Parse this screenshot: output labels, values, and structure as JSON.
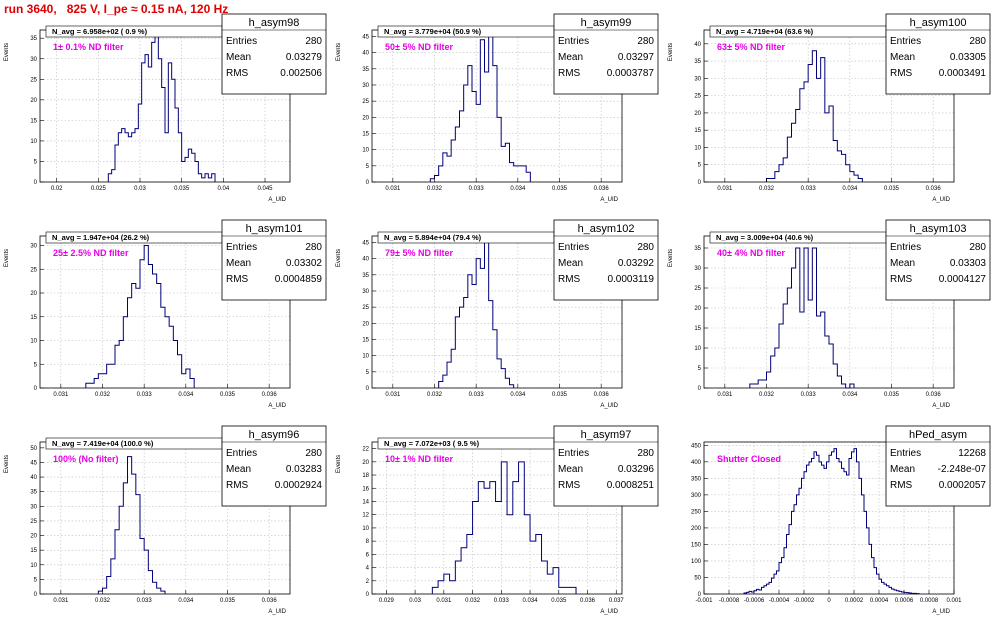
{
  "page_title": "run 3640,   825 V, I_pe ≈ 0.15 nA, 120 Hz",
  "chart_data": [
    {
      "type": "bar",
      "name": "h_asym98",
      "navg": "N_avg = 6.958e+02 ( 0.9 %)",
      "filter_label": "1± 0.1% ND filter",
      "stats": {
        "entries": "280",
        "mean": "0.03279",
        "rms": "0.002506"
      },
      "xlabel": "A_UID",
      "ylabel": "Events",
      "xlim": [
        0.018,
        0.048
      ],
      "ylim": [
        0,
        37
      ],
      "xticks": [
        0.02,
        0.025,
        0.03,
        0.035,
        0.04,
        0.045
      ],
      "xtick_labels": [
        "0.02",
        "0.025",
        "0.03",
        "0.035",
        "0.04",
        "0.045"
      ],
      "yticks": [
        0,
        5,
        10,
        15,
        20,
        25,
        30,
        35
      ],
      "x0": 0.0262,
      "bin_width": 0.0004,
      "values": [
        2,
        3,
        9,
        12,
        13,
        12,
        11,
        12,
        13,
        19,
        29,
        31,
        28,
        34,
        36,
        30,
        23,
        12,
        29,
        25,
        18,
        12,
        5,
        6,
        8,
        7,
        5,
        2,
        1,
        2,
        1,
        2
      ]
    },
    {
      "type": "bar",
      "name": "h_asym99",
      "navg": "N_avg = 3.779e+04 (50.9 %)",
      "filter_label": "50± 5% ND filter",
      "stats": {
        "entries": "280",
        "mean": "0.03297",
        "rms": "0.0003787"
      },
      "xlabel": "A_UID",
      "ylabel": "Events",
      "xlim": [
        0.0305,
        0.0365
      ],
      "ylim": [
        0,
        47
      ],
      "xticks": [
        0.031,
        0.032,
        0.033,
        0.034,
        0.035,
        0.036
      ],
      "xtick_labels": [
        "0.031",
        "0.032",
        "0.033",
        "0.034",
        "0.035",
        "0.036"
      ],
      "yticks": [
        0,
        5,
        10,
        15,
        20,
        25,
        30,
        35,
        40,
        45
      ],
      "x0": 0.0319,
      "bin_width": 0.0001,
      "values": [
        1,
        2,
        5,
        9,
        8,
        13,
        17,
        22,
        30,
        36,
        28,
        24,
        44,
        34,
        45,
        36,
        20,
        11,
        12,
        6,
        5,
        5,
        5,
        3
      ]
    },
    {
      "type": "bar",
      "name": "h_asym100",
      "navg": "N_avg = 4.719e+04 (63.6 %)",
      "filter_label": "63± 5% ND filter",
      "stats": {
        "entries": "280",
        "mean": "0.03305",
        "rms": "0.0003491"
      },
      "xlabel": "A_UID",
      "ylabel": "Events",
      "xlim": [
        0.0305,
        0.0365
      ],
      "ylim": [
        0,
        44
      ],
      "xticks": [
        0.031,
        0.032,
        0.033,
        0.034,
        0.035,
        0.036
      ],
      "xtick_labels": [
        "0.031",
        "0.032",
        "0.033",
        "0.034",
        "0.035",
        "0.036"
      ],
      "yticks": [
        0,
        5,
        10,
        15,
        20,
        25,
        30,
        35,
        40
      ],
      "x0": 0.032,
      "bin_width": 0.0001,
      "values": [
        1,
        1,
        3,
        5,
        7,
        13,
        17,
        21,
        27,
        29,
        34,
        38,
        30,
        36,
        20,
        22,
        12,
        9,
        8,
        5,
        3,
        2,
        1
      ]
    },
    {
      "type": "bar",
      "name": "h_asym101",
      "navg": "N_avg = 1.947e+04 (26.2 %)",
      "filter_label": "25± 2.5% ND filter",
      "stats": {
        "entries": "280",
        "mean": "0.03302",
        "rms": "0.0004859"
      },
      "xlabel": "A_UID",
      "ylabel": "Events",
      "xlim": [
        0.0305,
        0.0365
      ],
      "ylim": [
        0,
        32
      ],
      "xticks": [
        0.031,
        0.032,
        0.033,
        0.034,
        0.035,
        0.036
      ],
      "xtick_labels": [
        "0.031",
        "0.032",
        "0.033",
        "0.034",
        "0.035",
        "0.036"
      ],
      "yticks": [
        0,
        5,
        10,
        15,
        20,
        25,
        30
      ],
      "x0": 0.0316,
      "bin_width": 0.0001,
      "values": [
        1,
        1,
        2,
        3,
        3,
        5,
        5,
        9,
        10,
        15,
        19,
        22,
        21,
        27,
        30,
        26,
        24,
        22,
        17,
        15,
        13,
        10,
        7,
        3,
        4,
        2
      ]
    },
    {
      "type": "bar",
      "name": "h_asym102",
      "navg": "N_avg = 5.894e+04 (79.4 %)",
      "filter_label": "79± 5% ND filter",
      "stats": {
        "entries": "280",
        "mean": "0.03292",
        "rms": "0.0003119"
      },
      "xlabel": "A_UID",
      "ylabel": "Events",
      "xlim": [
        0.0305,
        0.0365
      ],
      "ylim": [
        0,
        47
      ],
      "xticks": [
        0.031,
        0.032,
        0.033,
        0.034,
        0.035,
        0.036
      ],
      "xtick_labels": [
        "0.031",
        "0.032",
        "0.033",
        "0.034",
        "0.035",
        "0.036"
      ],
      "yticks": [
        0,
        5,
        10,
        15,
        20,
        25,
        30,
        35,
        40,
        45
      ],
      "x0": 0.0321,
      "bin_width": 0.0001,
      "values": [
        2,
        4,
        8,
        12,
        22,
        25,
        28,
        35,
        32,
        40,
        37,
        45,
        27,
        18,
        9,
        6,
        3,
        1
      ]
    },
    {
      "type": "bar",
      "name": "h_asym103",
      "navg": "N_avg = 3.009e+04 (40.6 %)",
      "filter_label": "40± 4% ND filter",
      "stats": {
        "entries": "280",
        "mean": "0.03303",
        "rms": "0.0004127"
      },
      "xlabel": "A_UID",
      "ylabel": "Events",
      "xlim": [
        0.0305,
        0.0365
      ],
      "ylim": [
        0,
        38
      ],
      "xticks": [
        0.031,
        0.032,
        0.033,
        0.034,
        0.035,
        0.036
      ],
      "xtick_labels": [
        "0.031",
        "0.032",
        "0.033",
        "0.034",
        "0.035",
        "0.036"
      ],
      "yticks": [
        0,
        5,
        10,
        15,
        20,
        25,
        30,
        35
      ],
      "x0": 0.0316,
      "bin_width": 0.0001,
      "values": [
        1,
        1,
        2,
        2,
        4,
        8,
        10,
        16,
        21,
        25,
        30,
        35,
        19,
        35,
        22,
        35,
        18,
        19,
        13,
        11,
        6,
        3,
        1,
        0,
        1
      ]
    },
    {
      "type": "bar",
      "name": "h_asym96",
      "navg": "N_avg = 7.419e+04 (100.0 %)",
      "filter_label": "100% (No filter)",
      "stats": {
        "entries": "280",
        "mean": "0.03283",
        "rms": "0.0002924"
      },
      "xlabel": "A_UID",
      "ylabel": "Events",
      "xlim": [
        0.0305,
        0.0365
      ],
      "ylim": [
        0,
        52
      ],
      "xticks": [
        0.031,
        0.032,
        0.033,
        0.034,
        0.035,
        0.036
      ],
      "xtick_labels": [
        "0.031",
        "0.032",
        "0.033",
        "0.034",
        "0.035",
        "0.036"
      ],
      "yticks": [
        0,
        5,
        10,
        15,
        20,
        25,
        30,
        35,
        40,
        45,
        50
      ],
      "x0": 0.0319,
      "bin_width": 0.0001,
      "values": [
        1,
        2,
        6,
        12,
        22,
        30,
        38,
        47,
        41,
        34,
        19,
        15,
        8,
        4,
        2,
        1
      ]
    },
    {
      "type": "bar",
      "name": "h_asym97",
      "navg": "N_avg = 7.072e+03 ( 9.5 %)",
      "filter_label": "10± 1% ND filter",
      "stats": {
        "entries": "280",
        "mean": "0.03296",
        "rms": "0.0008251"
      },
      "xlabel": "A_UID",
      "ylabel": "Events",
      "xlim": [
        0.0285,
        0.0372
      ],
      "ylim": [
        0,
        23
      ],
      "xticks": [
        0.029,
        0.03,
        0.031,
        0.032,
        0.033,
        0.034,
        0.035,
        0.036,
        0.037
      ],
      "xtick_labels": [
        "0.029",
        "0.03",
        "0.031",
        "0.032",
        "0.033",
        "0.034",
        "0.035",
        "0.036",
        "0.037"
      ],
      "yticks": [
        0,
        2,
        4,
        6,
        8,
        10,
        12,
        14,
        16,
        18,
        20,
        22
      ],
      "x0": 0.0306,
      "bin_width": 0.0002,
      "values": [
        1,
        2,
        3,
        2,
        5,
        7,
        9,
        14,
        17,
        16,
        17,
        14,
        20,
        12,
        17,
        20,
        12,
        8,
        9,
        5,
        3,
        4,
        1,
        1,
        1
      ]
    },
    {
      "type": "bar",
      "name": "hPed_asym",
      "navg": "",
      "filter_label": "Shutter Closed",
      "stats": {
        "entries": "12268",
        "mean": "-2.248e-07",
        "rms": "0.0002057"
      },
      "xlabel": "A_UID",
      "ylabel": "",
      "xlim": [
        -0.001,
        0.001
      ],
      "ylim": [
        0,
        460
      ],
      "xticks": [
        -0.001,
        -0.0008,
        -0.0006,
        -0.0004,
        -0.0002,
        0,
        0.0002,
        0.0004,
        0.0006,
        0.0008,
        0.001
      ],
      "xtick_labels": [
        "-0.001",
        "-0.0008",
        "-0.0006",
        "-0.0004",
        "-0.0002",
        "0",
        "0.0002",
        "0.0004",
        "0.0006",
        "0.0008",
        "0.001"
      ],
      "yticks": [
        0,
        50,
        100,
        150,
        200,
        250,
        300,
        350,
        400,
        450
      ],
      "x0": -0.00068,
      "bin_width": 2e-05,
      "values": [
        3,
        5,
        8,
        6,
        10,
        14,
        12,
        20,
        25,
        30,
        35,
        48,
        60,
        70,
        95,
        110,
        140,
        180,
        210,
        250,
        270,
        300,
        320,
        350,
        370,
        390,
        400,
        410,
        430,
        420,
        400,
        390,
        380,
        400,
        420,
        430,
        440,
        410,
        400,
        380,
        370,
        360,
        410,
        430,
        440,
        400,
        350,
        300,
        250,
        200,
        150,
        110,
        80,
        60,
        45,
        35,
        30,
        25,
        20,
        15,
        12,
        10,
        8,
        6,
        5,
        4,
        3,
        2,
        2,
        1
      ]
    }
  ],
  "labels": {
    "stat_entries": "Entries",
    "stat_mean": "Mean",
    "stat_rms": "RMS"
  }
}
